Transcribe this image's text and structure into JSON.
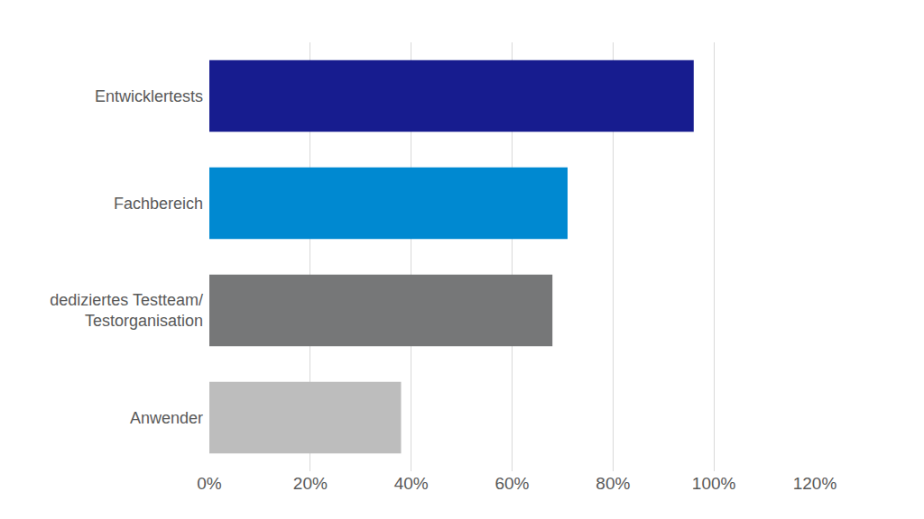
{
  "chart_data": {
    "type": "bar",
    "orientation": "horizontal",
    "categories": [
      "Entwicklertests",
      "Fachbereich",
      "dediziertes Testteam/\nTestorganisation",
      "Anwender"
    ],
    "values": [
      96,
      71,
      68,
      38
    ],
    "colors": [
      "#171c8f",
      "#0089d1",
      "#767778",
      "#bdbdbd"
    ],
    "xlim": [
      0,
      120
    ],
    "xticks": [
      {
        "value": 0,
        "label": "0%"
      },
      {
        "value": 20,
        "label": "20%"
      },
      {
        "value": 40,
        "label": "40%"
      },
      {
        "value": 60,
        "label": "60%"
      },
      {
        "value": 80,
        "label": "80%"
      },
      {
        "value": 100,
        "label": "100%"
      },
      {
        "value": 120,
        "label": "120%"
      }
    ],
    "grid": true
  }
}
